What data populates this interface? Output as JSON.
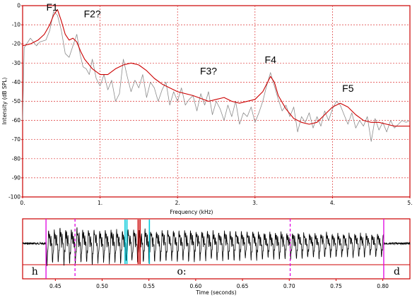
{
  "chart_data": [
    {
      "type": "line",
      "xlabel": "Frequency (kHz)",
      "ylabel": "Intensity (dB SPL)",
      "xlim": [
        0,
        5
      ],
      "ylim": [
        -100,
        0
      ],
      "x_ticks": [
        "0.",
        "1.",
        "2.",
        "3.",
        "4.",
        "5."
      ],
      "y_ticks": [
        "0",
        "-10",
        "-20",
        "-30",
        "-40",
        "-50",
        "-60",
        "-70",
        "-80",
        "-90",
        "-100"
      ],
      "grid": true,
      "series": [
        {
          "color": "#cc0000",
          "points": [
            [
              0,
              -21
            ],
            [
              0.1,
              -20
            ],
            [
              0.2,
              -18
            ],
            [
              0.28,
              -15
            ],
            [
              0.35,
              -10
            ],
            [
              0.4,
              -5
            ],
            [
              0.45,
              -2
            ],
            [
              0.5,
              -8
            ],
            [
              0.55,
              -15
            ],
            [
              0.6,
              -18
            ],
            [
              0.65,
              -17
            ],
            [
              0.7,
              -19
            ],
            [
              0.75,
              -24
            ],
            [
              0.8,
              -28
            ],
            [
              0.9,
              -33
            ],
            [
              1.0,
              -36
            ],
            [
              1.1,
              -36
            ],
            [
              1.2,
              -33
            ],
            [
              1.3,
              -31
            ],
            [
              1.4,
              -30
            ],
            [
              1.5,
              -31
            ],
            [
              1.6,
              -34
            ],
            [
              1.7,
              -38
            ],
            [
              1.8,
              -41
            ],
            [
              1.9,
              -43
            ],
            [
              2.0,
              -45
            ],
            [
              2.2,
              -47
            ],
            [
              2.4,
              -50
            ],
            [
              2.5,
              -49
            ],
            [
              2.6,
              -48
            ],
            [
              2.7,
              -50
            ],
            [
              2.8,
              -51
            ],
            [
              3.0,
              -49
            ],
            [
              3.1,
              -45
            ],
            [
              3.2,
              -37
            ],
            [
              3.25,
              -40
            ],
            [
              3.3,
              -47
            ],
            [
              3.4,
              -54
            ],
            [
              3.5,
              -59
            ],
            [
              3.6,
              -61
            ],
            [
              3.7,
              -62
            ],
            [
              3.8,
              -61
            ],
            [
              3.9,
              -57
            ],
            [
              4.0,
              -53
            ],
            [
              4.1,
              -51
            ],
            [
              4.2,
              -53
            ],
            [
              4.3,
              -57
            ],
            [
              4.4,
              -60
            ],
            [
              4.5,
              -61
            ],
            [
              4.6,
              -61
            ],
            [
              4.7,
              -62
            ],
            [
              4.8,
              -63
            ],
            [
              4.9,
              -63
            ],
            [
              5.0,
              -63
            ]
          ]
        },
        {
          "color": "#8c8c8c",
          "points": [
            [
              0,
              -60
            ],
            [
              0.02,
              -22
            ],
            [
              0.1,
              -17
            ],
            [
              0.18,
              -21
            ],
            [
              0.22,
              -19
            ],
            [
              0.3,
              -18
            ],
            [
              0.35,
              -13
            ],
            [
              0.4,
              -3
            ],
            [
              0.45,
              -5
            ],
            [
              0.5,
              -13
            ],
            [
              0.55,
              -25
            ],
            [
              0.6,
              -27
            ],
            [
              0.65,
              -21
            ],
            [
              0.7,
              -15
            ],
            [
              0.74,
              -25
            ],
            [
              0.78,
              -32
            ],
            [
              0.82,
              -33
            ],
            [
              0.86,
              -36
            ],
            [
              0.9,
              -28
            ],
            [
              0.95,
              -38
            ],
            [
              1.0,
              -42
            ],
            [
              1.05,
              -36
            ],
            [
              1.1,
              -44
            ],
            [
              1.15,
              -39
            ],
            [
              1.2,
              -50
            ],
            [
              1.25,
              -46
            ],
            [
              1.3,
              -28
            ],
            [
              1.35,
              -37
            ],
            [
              1.4,
              -45
            ],
            [
              1.45,
              -39
            ],
            [
              1.5,
              -43
            ],
            [
              1.55,
              -36
            ],
            [
              1.6,
              -48
            ],
            [
              1.65,
              -40
            ],
            [
              1.7,
              -43
            ],
            [
              1.75,
              -50
            ],
            [
              1.8,
              -44
            ],
            [
              1.85,
              -40
            ],
            [
              1.9,
              -52
            ],
            [
              1.95,
              -45
            ],
            [
              2.0,
              -50
            ],
            [
              2.05,
              -43
            ],
            [
              2.1,
              -52
            ],
            [
              2.15,
              -49
            ],
            [
              2.2,
              -47
            ],
            [
              2.25,
              -55
            ],
            [
              2.3,
              -46
            ],
            [
              2.35,
              -52
            ],
            [
              2.4,
              -45
            ],
            [
              2.45,
              -57
            ],
            [
              2.5,
              -50
            ],
            [
              2.55,
              -54
            ],
            [
              2.6,
              -60
            ],
            [
              2.65,
              -52
            ],
            [
              2.7,
              -58
            ],
            [
              2.75,
              -50
            ],
            [
              2.8,
              -62
            ],
            [
              2.85,
              -56
            ],
            [
              2.9,
              -58
            ],
            [
              2.95,
              -53
            ],
            [
              3.0,
              -61
            ],
            [
              3.05,
              -56
            ],
            [
              3.1,
              -50
            ],
            [
              3.15,
              -42
            ],
            [
              3.2,
              -35
            ],
            [
              3.25,
              -42
            ],
            [
              3.3,
              -49
            ],
            [
              3.35,
              -55
            ],
            [
              3.4,
              -52
            ],
            [
              3.45,
              -58
            ],
            [
              3.5,
              -53
            ],
            [
              3.55,
              -66
            ],
            [
              3.6,
              -58
            ],
            [
              3.65,
              -61
            ],
            [
              3.7,
              -56
            ],
            [
              3.75,
              -64
            ],
            [
              3.8,
              -58
            ],
            [
              3.85,
              -63
            ],
            [
              3.9,
              -55
            ],
            [
              3.95,
              -60
            ],
            [
              4.0,
              -54
            ],
            [
              4.05,
              -50
            ],
            [
              4.1,
              -52
            ],
            [
              4.15,
              -57
            ],
            [
              4.2,
              -62
            ],
            [
              4.25,
              -56
            ],
            [
              4.3,
              -64
            ],
            [
              4.35,
              -60
            ],
            [
              4.4,
              -63
            ],
            [
              4.45,
              -58
            ],
            [
              4.5,
              -71
            ],
            [
              4.55,
              -59
            ],
            [
              4.6,
              -65
            ],
            [
              4.65,
              -61
            ],
            [
              4.7,
              -66
            ],
            [
              4.75,
              -60
            ],
            [
              4.8,
              -64
            ],
            [
              4.85,
              -62
            ],
            [
              4.9,
              -60
            ],
            [
              4.95,
              -61
            ],
            [
              5.0,
              -60
            ]
          ]
        }
      ],
      "annotations": [
        {
          "text": "F1",
          "x": 0.38,
          "y": -2.5
        },
        {
          "text": "F2?",
          "x": 0.9,
          "y": -6
        },
        {
          "text": "F3?",
          "x": 2.4,
          "y": -36
        },
        {
          "text": "F4",
          "x": 3.2,
          "y": -30
        },
        {
          "text": "F5",
          "x": 4.2,
          "y": -45
        }
      ]
    },
    {
      "type": "line",
      "xlabel": "Time (seconds)",
      "xlim": [
        0.415,
        0.829
      ],
      "x_ticks": [
        "0.45",
        "0.50",
        "0.55",
        "0.60",
        "0.65",
        "0.70",
        "0.75",
        "0.80"
      ],
      "x_tick_values": [
        0.45,
        0.5,
        0.55,
        0.6,
        0.65,
        0.7,
        0.75,
        0.8
      ],
      "voicing_onset": 0.44,
      "voicing_offset": 0.801,
      "boundaries": [
        {
          "t": 0.44,
          "color": "#e000e0",
          "style": "solid"
        },
        {
          "t": 0.471,
          "color": "#e000e0",
          "style": "dashed"
        },
        {
          "t": 0.701,
          "color": "#e000e0",
          "style": "dashed"
        },
        {
          "t": 0.801,
          "color": "#e000e0",
          "style": "solid"
        }
      ],
      "highlights": [
        {
          "t": 0.5245,
          "color": "#00c8d8"
        },
        {
          "t": 0.5265,
          "color": "#00c8d8"
        },
        {
          "t": 0.5385,
          "color": "#cc0000"
        },
        {
          "t": 0.5405,
          "color": "#cc0000"
        },
        {
          "t": 0.5505,
          "color": "#00c8d8"
        }
      ],
      "segments": [
        {
          "label": "h",
          "t": 0.428
        },
        {
          "label": "o:",
          "t": 0.585
        },
        {
          "label": "d",
          "t": 0.815
        }
      ]
    }
  ]
}
